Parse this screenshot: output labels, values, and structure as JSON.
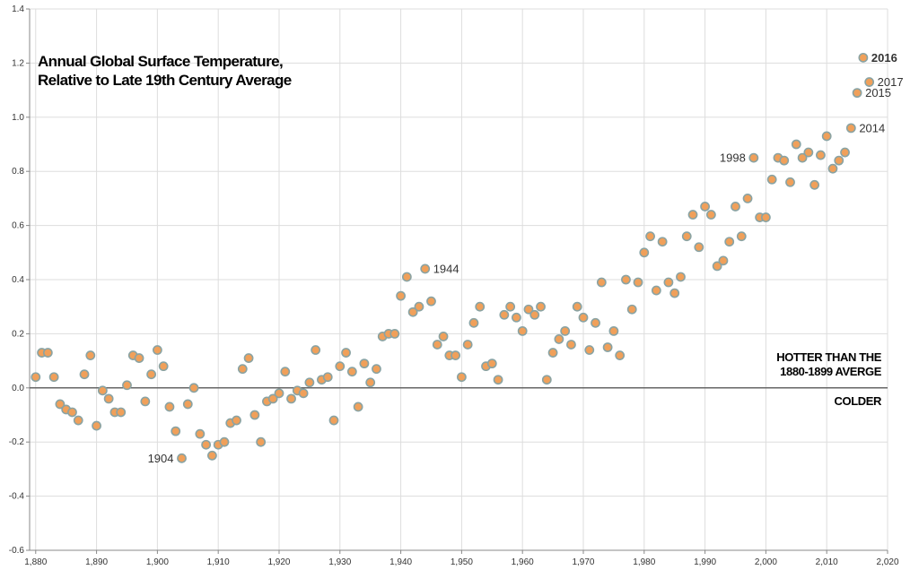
{
  "chart_data": {
    "type": "scatter",
    "title_lines": [
      "Annual Global Surface Temperature,",
      "Relative to Late 19th Century Average"
    ],
    "xlabel": "",
    "ylabel": "",
    "xlim": [
      1879,
      2020
    ],
    "ylim": [
      -0.6,
      1.4
    ],
    "x_ticks": [
      "1,880",
      "1,890",
      "1,900",
      "1,910",
      "1,920",
      "1,930",
      "1,940",
      "1,950",
      "1,960",
      "1,970",
      "1,980",
      "1,990",
      "2,000",
      "2,010",
      "2,020"
    ],
    "y_ticks": [
      "1.4",
      "1.2",
      "1.0",
      "0.8",
      "0.6",
      "0.4",
      "0.2",
      "0.0",
      "-0.2",
      "-0.4",
      "-0.6"
    ],
    "grid": true,
    "zero_line": 0,
    "zone_labels": {
      "hotter": [
        "HOTTER THAN THE",
        "1880-1899 AVERGE"
      ],
      "colder": [
        "COLDER"
      ]
    },
    "colors": {
      "point_fill": "#f0a05a",
      "point_stroke": "#8aa3a3",
      "grid": "#dddddd",
      "axis": "#888888",
      "zero_line": "#666666"
    },
    "annotations": [
      {
        "year": 1904,
        "label": "1904",
        "side": "left",
        "bold": false
      },
      {
        "year": 1944,
        "label": "1944",
        "side": "right",
        "bold": false
      },
      {
        "year": 1998,
        "label": "1998",
        "side": "left",
        "bold": false
      },
      {
        "year": 2014,
        "label": "2014",
        "side": "right",
        "bold": false
      },
      {
        "year": 2015,
        "label": "2015",
        "side": "right",
        "bold": false
      },
      {
        "year": 2016,
        "label": "2016",
        "side": "right",
        "bold": true
      },
      {
        "year": 2017,
        "label": "2017",
        "side": "right",
        "bold": false
      }
    ],
    "series": [
      {
        "x": [
          1880,
          1881,
          1882,
          1883,
          1884,
          1885,
          1886,
          1887,
          1888,
          1889,
          1890,
          1891,
          1892,
          1893,
          1894,
          1895,
          1896,
          1897,
          1898,
          1899,
          1900,
          1901,
          1902,
          1903,
          1904,
          1905,
          1906,
          1907,
          1908,
          1909,
          1910,
          1911,
          1912,
          1913,
          1914,
          1915,
          1916,
          1917,
          1918,
          1919,
          1920,
          1921,
          1922,
          1923,
          1924,
          1925,
          1926,
          1927,
          1928,
          1929,
          1930,
          1931,
          1932,
          1933,
          1934,
          1935,
          1936,
          1937,
          1938,
          1939,
          1940,
          1941,
          1942,
          1943,
          1944,
          1945,
          1946,
          1947,
          1948,
          1949,
          1950,
          1951,
          1952,
          1953,
          1954,
          1955,
          1956,
          1957,
          1958,
          1959,
          1960,
          1961,
          1962,
          1963,
          1964,
          1965,
          1966,
          1967,
          1968,
          1969,
          1970,
          1971,
          1972,
          1973,
          1974,
          1975,
          1976,
          1977,
          1978,
          1979,
          1980,
          1981,
          1982,
          1983,
          1984,
          1985,
          1986,
          1987,
          1988,
          1989,
          1990,
          1991,
          1992,
          1993,
          1994,
          1995,
          1996,
          1997,
          1998,
          1999,
          2000,
          2001,
          2002,
          2003,
          2004,
          2005,
          2006,
          2007,
          2008,
          2009,
          2010,
          2011,
          2012,
          2013,
          2014,
          2015,
          2016,
          2017
        ],
        "y": [
          0.04,
          0.13,
          0.13,
          0.04,
          -0.06,
          -0.08,
          -0.09,
          -0.12,
          0.05,
          0.12,
          -0.14,
          -0.01,
          -0.04,
          -0.09,
          -0.09,
          0.01,
          0.12,
          0.11,
          -0.05,
          0.05,
          0.14,
          0.08,
          -0.07,
          -0.16,
          -0.26,
          -0.06,
          0.0,
          -0.17,
          -0.21,
          -0.25,
          -0.21,
          -0.2,
          -0.13,
          -0.12,
          0.07,
          0.11,
          -0.1,
          -0.2,
          -0.05,
          -0.04,
          -0.02,
          0.06,
          -0.04,
          -0.01,
          -0.02,
          0.02,
          0.14,
          0.03,
          0.04,
          -0.12,
          0.08,
          0.13,
          0.06,
          -0.07,
          0.09,
          0.02,
          0.07,
          0.19,
          0.2,
          0.2,
          0.34,
          0.41,
          0.28,
          0.3,
          0.44,
          0.32,
          0.16,
          0.19,
          0.12,
          0.12,
          0.04,
          0.16,
          0.24,
          0.3,
          0.08,
          0.09,
          0.03,
          0.27,
          0.3,
          0.26,
          0.21,
          0.29,
          0.27,
          0.3,
          0.03,
          0.13,
          0.18,
          0.21,
          0.16,
          0.3,
          0.26,
          0.14,
          0.24,
          0.39,
          0.15,
          0.21,
          0.12,
          0.4,
          0.29,
          0.39,
          0.5,
          0.56,
          0.36,
          0.54,
          0.39,
          0.35,
          0.41,
          0.56,
          0.64,
          0.52,
          0.67,
          0.64,
          0.45,
          0.47,
          0.54,
          0.67,
          0.56,
          0.7,
          0.85,
          0.63,
          0.63,
          0.77,
          0.85,
          0.84,
          0.76,
          0.9,
          0.85,
          0.87,
          0.75,
          0.86,
          0.93,
          0.81,
          0.84,
          0.87,
          0.96,
          1.09,
          1.22,
          1.13
        ]
      }
    ]
  }
}
